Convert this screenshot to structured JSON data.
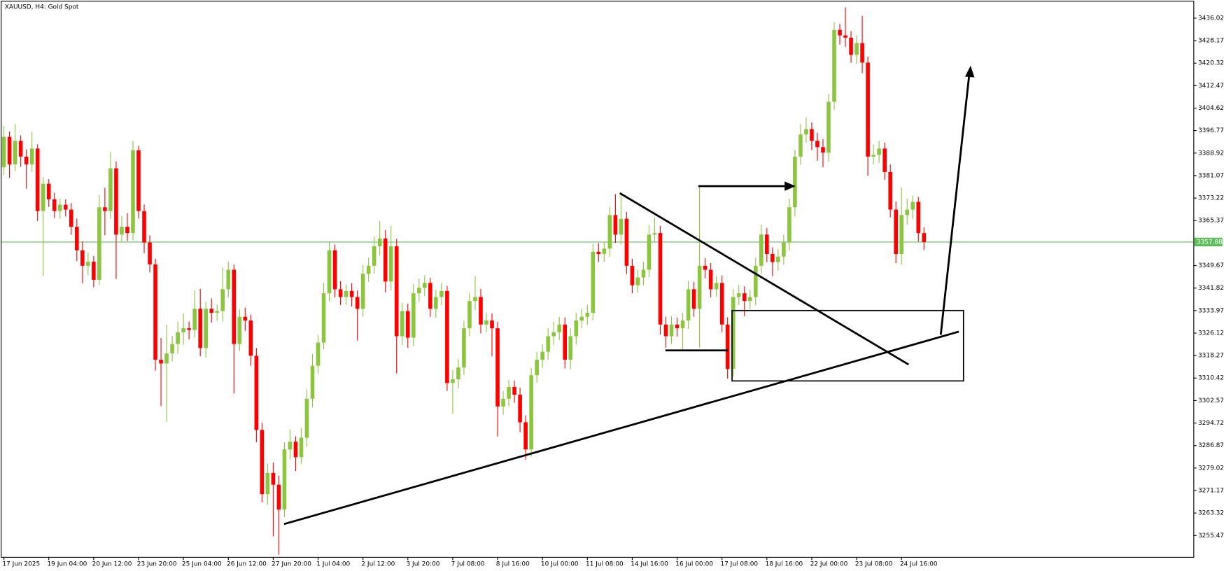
{
  "chart_data": {
    "type": "candlestick",
    "title": "XAUUSD, H4:  Gold Spot",
    "up_color": "#8cc63f",
    "down_color": "#ff0000",
    "current_price": 3357.88,
    "current_price_color": "#5cbf5c",
    "ylim": [
      3248.0,
      3441.8
    ],
    "yticks": [
      3255.47,
      3263.32,
      3271.17,
      3279.02,
      3286.87,
      3294.72,
      3302.57,
      3310.42,
      3318.27,
      3326.12,
      3333.97,
      3341.82,
      3349.67,
      3365.37,
      3373.22,
      3381.07,
      3388.92,
      3396.77,
      3404.62,
      3412.47,
      3420.32,
      3428.17,
      3436.02
    ],
    "categories": [
      "17 Jun 2025",
      null,
      null,
      null,
      null,
      null,
      null,
      null,
      "19 Jun 04:00",
      null,
      null,
      null,
      null,
      null,
      null,
      null,
      "20 Jun 12:00",
      null,
      null,
      null,
      null,
      null,
      null,
      null,
      "23 Jun 20:00",
      null,
      null,
      null,
      null,
      null,
      null,
      null,
      "25 Jun 04:00",
      null,
      null,
      null,
      null,
      null,
      null,
      null,
      "26 Jun 12:00",
      null,
      null,
      null,
      null,
      null,
      null,
      null,
      "27 Jun 20:00",
      null,
      null,
      null,
      null,
      null,
      null,
      null,
      "1 Jul 04:00",
      null,
      null,
      null,
      null,
      null,
      null,
      null,
      "2 Jul 12:00",
      null,
      null,
      null,
      null,
      null,
      null,
      null,
      "3 Jul 20:00",
      null,
      null,
      null,
      null,
      null,
      null,
      null,
      "7 Jul 08:00",
      null,
      null,
      null,
      null,
      null,
      null,
      null,
      "8 Jul 16:00",
      null,
      null,
      null,
      null,
      null,
      null,
      null,
      "10 Jul 00:00",
      null,
      null,
      null,
      null,
      null,
      null,
      null,
      "11 Jul 08:00",
      null,
      null,
      null,
      null,
      null,
      null,
      null,
      "14 Jul 16:00",
      null,
      null,
      null,
      null,
      null,
      null,
      null,
      "16 Jul 00:00",
      null,
      null,
      null,
      null,
      null,
      null,
      null,
      "17 Jul 08:00",
      null,
      null,
      null,
      null,
      null,
      null,
      null,
      "18 Jul 16:00",
      null,
      null,
      null,
      null,
      null,
      null,
      null,
      "22 Jul 00:00",
      null,
      null,
      null,
      null,
      null,
      null,
      null,
      "23 Jul 08:00",
      null,
      null,
      null,
      null,
      null,
      null,
      null,
      "24 Jul 16:00",
      null,
      null,
      null,
      null
    ],
    "open": [
      3384.0,
      3394.6,
      3385.0,
      3393.2,
      3387.7,
      3385.0,
      3390.5,
      3368.7,
      3378.2,
      3372.8,
      3368.7,
      3370.9,
      3369.2,
      3363.2,
      3355.0,
      3349.6,
      3351.0,
      3344.7,
      3370.0,
      3368.7,
      3383.6,
      3360.5,
      3363.2,
      3361.0,
      3389.9,
      3368.7,
      3357.7,
      3350.1,
      3316.8,
      3315.5,
      3319.0,
      3322.3,
      3326.4,
      3327.8,
      3327.2,
      3334.6,
      3320.9,
      3334.6,
      3333.2,
      3333.8,
      3341.4,
      3348.2,
      3322.3,
      3331.8,
      3330.5,
      3318.2,
      3292.3,
      3269.9,
      3277.3,
      3273.2,
      3264.5,
      3285.5,
      3288.2,
      3282.8,
      3289.6,
      3303.2,
      3314.7,
      3322.8,
      3340.0,
      3355.0,
      3341.4,
      3338.7,
      3340.8,
      3338.7,
      3334.6,
      3346.8,
      3349.6,
      3356.4,
      3359.1,
      3344.1,
      3356.4,
      3325.0,
      3333.8,
      3324.5,
      3340.0,
      3341.9,
      3343.6,
      3334.6,
      3338.7,
      3340.8,
      3308.7,
      3310.0,
      3314.1,
      3327.8,
      3337.3,
      3338.7,
      3329.1,
      3330.5,
      3327.8,
      3300.5,
      3303.2,
      3307.3,
      3304.6,
      3295.0,
      3285.5,
      3311.4,
      3316.8,
      3319.6,
      3325.0,
      3326.4,
      3329.1,
      3316.8,
      3325.0,
      3330.5,
      3331.8,
      3333.2,
      3354.5,
      3353.7,
      3355.6,
      3367.3,
      3360.5,
      3366.0,
      3349.6,
      3342.8,
      3345.5,
      3348.2,
      3360.5,
      3361.0,
      3329.1,
      3325.0,
      3329.1,
      3327.8,
      3330.5,
      3341.4,
      3334.6,
      3349.6,
      3348.2,
      3341.4,
      3343.6,
      3329.1,
      3313.6,
      3338.7,
      3340.0,
      3337.3,
      3338.7,
      3349.6,
      3360.5,
      3353.7,
      3350.9,
      3352.8,
      3357.7,
      3370.0,
      3387.7,
      3395.4,
      3397.3,
      3393.2,
      3391.0,
      3389.1,
      3406.8,
      3431.9,
      3430.0,
      3429.2,
      3423.2,
      3427.3,
      3420.5,
      3387.7,
      3388.3,
      3390.5,
      3382.3,
      3369.2,
      3353.7,
      3367.3,
      3369.2,
      3371.9,
      3361.0
    ],
    "high": [
      3398.4,
      3396.5,
      3399.0,
      3395.1,
      3390.2,
      3396.3,
      3392.0,
      3380.5,
      3379.8,
      3375.1,
      3373.0,
      3372.8,
      3371.5,
      3366.0,
      3358.1,
      3354.2,
      3353.0,
      3374.3,
      3376.8,
      3389.3,
      3386.0,
      3366.9,
      3368.0,
      3393.1,
      3391.5,
      3371.0,
      3360.2,
      3352.0,
      3324.4,
      3329.0,
      3325.1,
      3330.2,
      3333.0,
      3330.1,
      3340.9,
      3341.5,
      3337.0,
      3338.2,
      3336.1,
      3349.0,
      3351.1,
      3350.0,
      3334.4,
      3335.0,
      3332.6,
      3320.9,
      3294.8,
      3280.6,
      3281.0,
      3276.4,
      3288.0,
      3292.6,
      3290.1,
      3293.0,
      3306.4,
      3318.8,
      3325.5,
      3343.6,
      3358.2,
      3357.0,
      3344.2,
      3343.0,
      3343.5,
      3341.0,
      3349.9,
      3352.3,
      3359.8,
      3365.2,
      3362.0,
      3363.5,
      3359.0,
      3336.6,
      3336.4,
      3343.2,
      3345.1,
      3346.3,
      3345.4,
      3341.2,
      3343.6,
      3342.5,
      3313.2,
      3317.0,
      3330.4,
      3340.1,
      3346.0,
      3341.5,
      3333.2,
      3333.0,
      3330.1,
      3305.9,
      3309.8,
      3309.6,
      3307.0,
      3297.4,
      3314.0,
      3319.5,
      3322.3,
      3327.8,
      3330.0,
      3331.8,
      3331.6,
      3327.8,
      3333.1,
      3334.5,
      3336.0,
      3357.2,
      3357.5,
      3358.0,
      3370.2,
      3374.6,
      3375.0,
      3368.4,
      3352.0,
      3348.2,
      3351.0,
      3363.8,
      3366.5,
      3363.5,
      3331.8,
      3332.0,
      3331.5,
      3333.2,
      3344.3,
      3344.0,
      3377.0,
      3352.3,
      3350.6,
      3346.0,
      3346.2,
      3331.6,
      3341.5,
      3343.0,
      3342.4,
      3341.2,
      3352.4,
      3363.9,
      3362.8,
      3356.0,
      3355.5,
      3360.5,
      3373.0,
      3390.1,
      3399.0,
      3401.5,
      3399.6,
      3396.0,
      3393.8,
      3409.5,
      3434.6,
      3434.0,
      3439.8,
      3431.5,
      3430.0,
      3436.8,
      3422.6,
      3392.0,
      3393.2,
      3392.6,
      3385.0,
      3372.0,
      3377.0,
      3373.0,
      3374.1,
      3373.6,
      3363.0
    ],
    "low": [
      3381.2,
      3380.3,
      3382.6,
      3384.1,
      3376.5,
      3382.4,
      3365.2,
      3346.0,
      3370.1,
      3366.2,
      3366.0,
      3366.8,
      3360.4,
      3351.2,
      3343.5,
      3346.3,
      3342.1,
      3342.9,
      3360.2,
      3366.0,
      3345.0,
      3357.8,
      3358.2,
      3358.5,
      3366.1,
      3354.0,
      3347.3,
      3313.0,
      3300.6,
      3295.1,
      3316.2,
      3318.9,
      3322.0,
      3323.9,
      3324.6,
      3318.0,
      3317.6,
      3329.8,
      3330.4,
      3330.2,
      3338.6,
      3305.0,
      3319.8,
      3326.9,
      3314.7,
      3288.0,
      3267.1,
      3266.2,
      3255.2,
      3248.8,
      3261.9,
      3282.0,
      3278.0,
      3280.4,
      3286.5,
      3300.1,
      3312.0,
      3320.5,
      3337.2,
      3338.6,
      3335.9,
      3336.0,
      3335.4,
      3323.5,
      3331.8,
      3344.0,
      3346.9,
      3353.2,
      3340.3,
      3341.0,
      3312.0,
      3321.8,
      3321.0,
      3321.6,
      3337.1,
      3339.0,
      3331.8,
      3331.5,
      3335.9,
      3305.9,
      3298.0,
      3306.8,
      3311.5,
      3325.0,
      3334.2,
      3326.0,
      3326.5,
      3318.0,
      3290.0,
      3297.6,
      3300.6,
      3301.8,
      3291.5,
      3281.9,
      3283.0,
      3308.7,
      3314.0,
      3316.9,
      3322.0,
      3323.7,
      3313.8,
      3313.5,
      3322.1,
      3327.8,
      3329.0,
      3330.6,
      3350.9,
      3351.0,
      3352.8,
      3357.6,
      3357.0,
      3346.7,
      3340.0,
      3340.2,
      3342.8,
      3345.6,
      3357.8,
      3325.6,
      3321.0,
      3322.3,
      3324.9,
      3320.0,
      3327.6,
      3331.8,
      3321.0,
      3345.2,
      3338.6,
      3338.8,
      3326.4,
      3310.2,
      3310.9,
      3335.9,
      3332.0,
      3334.5,
      3335.8,
      3346.8,
      3350.9,
      3346.0,
      3347.8,
      3350.0,
      3354.9,
      3366.8,
      3384.9,
      3392.5,
      3390.0,
      3386.2,
      3384.0,
      3386.0,
      3404.0,
      3426.8,
      3426.0,
      3420.4,
      3420.0,
      3416.8,
      3381.0,
      3385.0,
      3385.5,
      3379.6,
      3366.5,
      3350.5,
      3350.0,
      3364.0,
      3366.0,
      3358.0,
      3355.1
    ],
    "close": [
      3394.6,
      3385.0,
      3393.2,
      3387.7,
      3385.0,
      3390.5,
      3368.7,
      3378.2,
      3372.8,
      3368.7,
      3370.9,
      3369.2,
      3363.2,
      3355.0,
      3349.6,
      3351.0,
      3344.7,
      3370.0,
      3368.7,
      3383.6,
      3360.5,
      3363.2,
      3361.0,
      3389.9,
      3368.7,
      3357.7,
      3350.1,
      3316.8,
      3315.5,
      3319.0,
      3322.3,
      3326.4,
      3327.8,
      3327.2,
      3334.6,
      3320.9,
      3334.6,
      3333.2,
      3333.8,
      3341.4,
      3348.2,
      3322.3,
      3331.8,
      3330.5,
      3318.2,
      3292.3,
      3269.9,
      3277.3,
      3273.2,
      3264.5,
      3285.5,
      3288.2,
      3282.8,
      3289.6,
      3303.2,
      3314.7,
      3322.8,
      3340.0,
      3355.0,
      3341.4,
      3338.7,
      3340.8,
      3338.7,
      3334.6,
      3346.8,
      3349.6,
      3356.4,
      3359.1,
      3344.1,
      3356.4,
      3325.0,
      3333.8,
      3324.5,
      3340.0,
      3341.9,
      3343.6,
      3334.6,
      3338.7,
      3340.8,
      3308.7,
      3310.0,
      3314.1,
      3327.8,
      3337.3,
      3338.7,
      3329.1,
      3330.5,
      3327.8,
      3300.5,
      3303.2,
      3307.3,
      3304.6,
      3295.0,
      3285.5,
      3311.4,
      3316.8,
      3319.6,
      3325.0,
      3326.4,
      3329.1,
      3316.8,
      3325.0,
      3330.5,
      3331.8,
      3333.2,
      3354.5,
      3353.7,
      3355.6,
      3367.3,
      3360.5,
      3366.0,
      3349.6,
      3342.8,
      3345.5,
      3348.2,
      3360.5,
      3361.0,
      3329.1,
      3325.0,
      3329.1,
      3327.8,
      3330.5,
      3341.4,
      3334.6,
      3349.6,
      3348.2,
      3341.4,
      3343.6,
      3329.1,
      3313.6,
      3338.7,
      3340.0,
      3337.3,
      3338.7,
      3349.6,
      3360.5,
      3353.7,
      3350.9,
      3352.8,
      3357.7,
      3370.0,
      3387.7,
      3395.4,
      3397.3,
      3393.2,
      3391.0,
      3389.1,
      3406.8,
      3431.9,
      3430.0,
      3429.2,
      3423.2,
      3427.3,
      3420.5,
      3387.7,
      3388.3,
      3390.5,
      3382.3,
      3369.2,
      3353.7,
      3367.3,
      3369.2,
      3371.9,
      3361.0,
      3357.9
    ]
  }
}
